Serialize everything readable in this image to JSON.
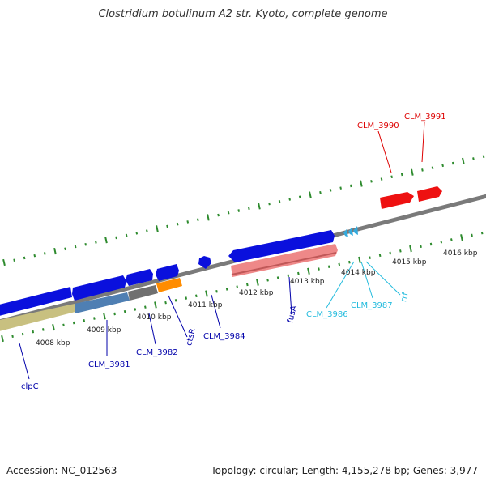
{
  "title": "Clostridium botulinum A2 str. Kyoto, complete genome",
  "footer": {
    "accession": "Accession: NC_012563",
    "topology": "Topology: circular; Length: 4,155,278 bp; Genes: 3,977"
  },
  "colors": {
    "backbone": "#808080",
    "tick": "#2e8b2e",
    "blue_gene": "#0a10dd",
    "red_gene": "#ee1111",
    "cyan_gene": "#33aadd",
    "pink_gene": "#ee8888",
    "khaki_gene": "#c8c080",
    "steel_gene": "#4f7fb3",
    "grey_gene": "#707070",
    "orange_gene": "#ff8c00",
    "label_blue": "#0000aa",
    "label_red": "#dd0000",
    "label_cyan": "#22bbdd"
  },
  "kbp_labels": [
    "4008 kbp",
    "4009 kbp",
    "4010 kbp",
    "4011 kbp",
    "4012 kbp",
    "4013 kbp",
    "4014 kbp",
    "4015 kbp",
    "4016 kbp"
  ],
  "gene_labels": {
    "clpC": "clpC",
    "CLM_3981": "CLM_3981",
    "CLM_3982": "CLM_3982",
    "ctsR": "ctsR",
    "CLM_3984": "CLM_3984",
    "fusA": "fusA",
    "CLM_3986": "CLM_3986",
    "CLM_3987": "CLM_3987",
    "rrf": "rrf",
    "CLM_3990": "CLM_3990",
    "CLM_3991": "CLM_3991"
  }
}
